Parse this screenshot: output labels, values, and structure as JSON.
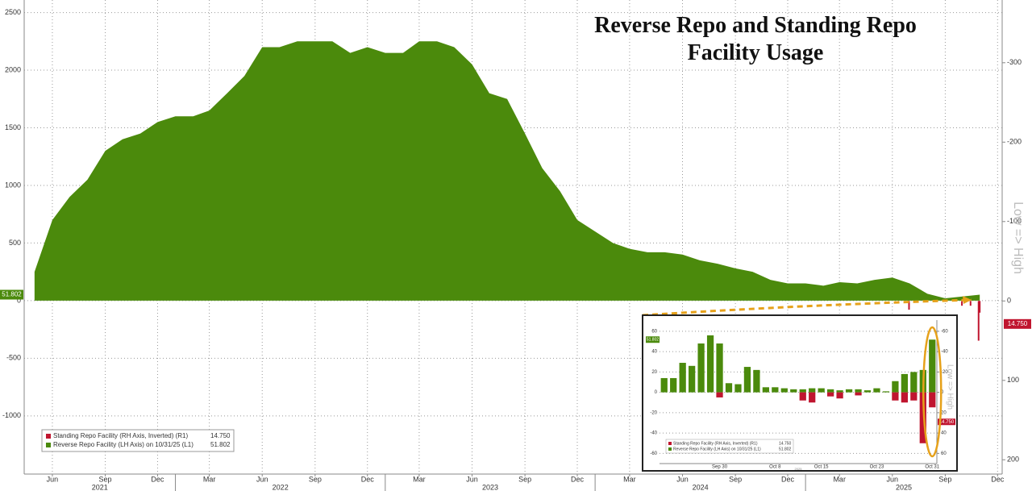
{
  "chart_data": [
    {
      "type": "area",
      "title": "Reverse Repo and Standing Repo Facility Usage",
      "y2_label": "Low => High",
      "xlim": [
        "2021-04-13",
        "2025-12-09"
      ],
      "xticks": [
        {
          "value": "2021-06",
          "label": "Jun"
        },
        {
          "value": "2021-09",
          "label": "Sep"
        },
        {
          "value": "2021-12",
          "label": "Dec"
        },
        {
          "value": "2022-03",
          "label": "Mar"
        },
        {
          "value": "2022-06",
          "label": "Jun"
        },
        {
          "value": "2022-09",
          "label": "Sep"
        },
        {
          "value": "2022-12",
          "label": "Dec"
        },
        {
          "value": "2023-03",
          "label": "Mar"
        },
        {
          "value": "2023-06",
          "label": "Jun"
        },
        {
          "value": "2023-09",
          "label": "Sep"
        },
        {
          "value": "2023-12",
          "label": "Dec"
        },
        {
          "value": "2024-03",
          "label": "Mar"
        },
        {
          "value": "2024-06",
          "label": "Jun"
        },
        {
          "value": "2024-09",
          "label": "Sep"
        },
        {
          "value": "2024-12",
          "label": "Dec"
        },
        {
          "value": "2025-03",
          "label": "Mar"
        },
        {
          "value": "2025-06",
          "label": "Jun"
        },
        {
          "value": "2025-09",
          "label": "Sep"
        },
        {
          "value": "2025-12",
          "label": "Dec"
        }
      ],
      "years": [
        "2021",
        "2022",
        "2023",
        "2024",
        "2025"
      ],
      "ylim": [
        -1505,
        2609
      ],
      "yticks": [
        -1000,
        -500,
        0,
        500,
        1000,
        1500,
        2000,
        2500
      ],
      "y2lim": [
        -379,
        218
      ],
      "y2_inverted": true,
      "y2ticks": [
        -300,
        -200,
        -100,
        0,
        100,
        200
      ],
      "grid": true,
      "series": [
        {
          "name": "Standing Repo Facility (RH Axis, Inverted) (R1)",
          "type": "bar",
          "axis": "y2",
          "color": "#c0152f",
          "x": [
            "2025-06-30",
            "2025-09-30",
            "2025-10-15",
            "2025-10-29",
            "2025-10-31"
          ],
          "values": [
            11,
            6,
            6,
            50,
            14.75
          ],
          "last_label": "14.750"
        },
        {
          "name": "Reverse Repo Facility (LH Axis) on 10/31/25 (L1)",
          "type": "area",
          "color": "#4b8a0c",
          "x": [
            "2021-05",
            "2021-06",
            "2021-07",
            "2021-08",
            "2021-09",
            "2021-10",
            "2021-11",
            "2021-12",
            "2022-01",
            "2022-02",
            "2022-03",
            "2022-04",
            "2022-05",
            "2022-06",
            "2022-07",
            "2022-08",
            "2022-09",
            "2022-10",
            "2022-11",
            "2022-12",
            "2023-01",
            "2023-02",
            "2023-03",
            "2023-04",
            "2023-05",
            "2023-06",
            "2023-07",
            "2023-08",
            "2023-09",
            "2023-10",
            "2023-11",
            "2023-12",
            "2024-01",
            "2024-02",
            "2024-03",
            "2024-04",
            "2024-05",
            "2024-06",
            "2024-07",
            "2024-08",
            "2024-09",
            "2024-10",
            "2024-11",
            "2024-12",
            "2025-01",
            "2025-02",
            "2025-03",
            "2025-04",
            "2025-05",
            "2025-06",
            "2025-07",
            "2025-08",
            "2025-09",
            "2025-10-31"
          ],
          "values": [
            250,
            700,
            900,
            1050,
            1300,
            1400,
            1450,
            1550,
            1600,
            1600,
            1650,
            1800,
            1950,
            2200,
            2200,
            2250,
            2250,
            2250,
            2150,
            2200,
            2150,
            2150,
            2250,
            2250,
            2200,
            2050,
            1800,
            1750,
            1450,
            1150,
            950,
            700,
            600,
            500,
            450,
            420,
            420,
            400,
            350,
            320,
            280,
            250,
            180,
            150,
            150,
            130,
            160,
            150,
            180,
            200,
            150,
            60,
            20,
            51.802
          ],
          "last_label": "51.802"
        }
      ]
    },
    {
      "type": "bar",
      "y2_label": "Low => High",
      "year": "2025",
      "categories": [
        null,
        null,
        null,
        null,
        null,
        null,
        "Sep 30",
        null,
        null,
        null,
        null,
        null,
        "Oct 8",
        null,
        null,
        null,
        null,
        "Oct 15",
        null,
        null,
        null,
        null,
        null,
        "Oct 23",
        null,
        null,
        null,
        null,
        null,
        "Oct 31"
      ],
      "ylim": [
        -70,
        71
      ],
      "yticks": [
        -60,
        -40,
        -20,
        0,
        20,
        40,
        60
      ],
      "y2lim": [
        -71,
        70
      ],
      "y2_inverted": true,
      "y2ticks": [
        -60,
        -40,
        -20,
        0,
        20,
        40,
        60
      ],
      "series": [
        {
          "name": "Standing Repo Facility (RH Axis, Inverted) (R1)",
          "axis": "y2",
          "color": "#c0152f",
          "values": [
            0,
            0,
            0,
            0,
            0,
            0,
            5,
            0,
            0,
            0,
            0,
            0,
            0,
            0,
            0,
            8,
            10,
            0,
            4,
            6,
            0,
            3,
            0,
            0,
            0,
            8,
            10,
            8,
            50,
            14.75
          ],
          "last_label": "14.750"
        },
        {
          "name": "Reverse Repo Facility (LH Axis) on 10/31/25 (L1)",
          "color": "#4b8a0c",
          "values": [
            14,
            14,
            29,
            26,
            48,
            56,
            48,
            9,
            8,
            25,
            22,
            5,
            5,
            4,
            3,
            3,
            4,
            4,
            3,
            2,
            3,
            3,
            2,
            4,
            1,
            11,
            18,
            20,
            22,
            51.802
          ],
          "last_label": "51.802"
        }
      ]
    }
  ]
}
